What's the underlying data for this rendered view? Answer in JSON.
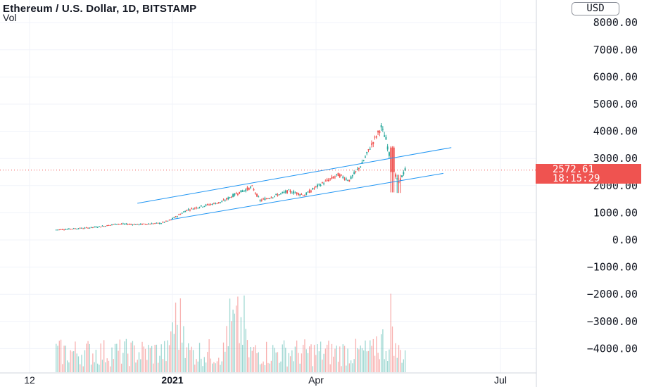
{
  "header": {
    "title": "Ethereum / U.S. Dollar, 1D, BITSTAMP",
    "vol_label": "Vol"
  },
  "currency_button": "USD",
  "price_tag": {
    "price": "2572.61",
    "countdown": "18:15:29"
  },
  "colors": {
    "up": "#26a69a",
    "down": "#ef5350",
    "channel": "#2196f3",
    "grid": "#f0f3fa",
    "axis_text": "#131722"
  },
  "chart_data": {
    "type": "candlestick",
    "title": "Ethereum / U.S. Dollar, 1D, BITSTAMP",
    "ylim": [
      -4900,
      8300
    ],
    "y_ticks": [
      "8000.00",
      "7000.00",
      "6000.00",
      "5000.00",
      "4000.00",
      "3000.00",
      "2000.00",
      "1000.00",
      "0.00",
      "−1000.00",
      "−2000.00",
      "−3000.00",
      "−4000.00"
    ],
    "x_ticks": [
      "12",
      "2021",
      "Apr",
      "Jul"
    ],
    "last_price": 2572.61,
    "price_path": [
      [
        "2020-10-20",
        375
      ],
      [
        "2020-11-10",
        450
      ],
      [
        "2020-11-20",
        520
      ],
      [
        "2020-11-27",
        590
      ],
      [
        "2020-12-10",
        570
      ],
      [
        "2020-12-25",
        620
      ],
      [
        "2020-12-31",
        740
      ],
      [
        "2021-01-10",
        1100
      ],
      [
        "2021-01-20",
        1250
      ],
      [
        "2021-02-01",
        1400
      ],
      [
        "2021-02-10",
        1700
      ],
      [
        "2021-02-20",
        1950
      ],
      [
        "2021-02-25",
        1450
      ],
      [
        "2021-03-05",
        1600
      ],
      [
        "2021-03-15",
        1800
      ],
      [
        "2021-03-25",
        1650
      ],
      [
        "2021-04-01",
        1950
      ],
      [
        "2021-04-15",
        2400
      ],
      [
        "2021-04-22",
        2200
      ],
      [
        "2021-04-30",
        2800
      ],
      [
        "2021-05-05",
        3400
      ],
      [
        "2021-05-12",
        4150
      ],
      [
        "2021-05-15",
        3700
      ],
      [
        "2021-05-19",
        2600
      ],
      [
        "2021-05-23",
        2100
      ],
      [
        "2021-05-28",
        2700
      ]
    ],
    "channel_lines": [
      {
        "from": [
          "2020-12-10",
          1350
        ],
        "to": [
          "2021-06-25",
          3400
        ]
      },
      {
        "from": [
          "2020-12-31",
          750
        ],
        "to": [
          "2021-06-20",
          2450
        ]
      }
    ],
    "volume": "bar histogram at bottom, largest spikes around early January, mid-February and 19 May 2021"
  }
}
